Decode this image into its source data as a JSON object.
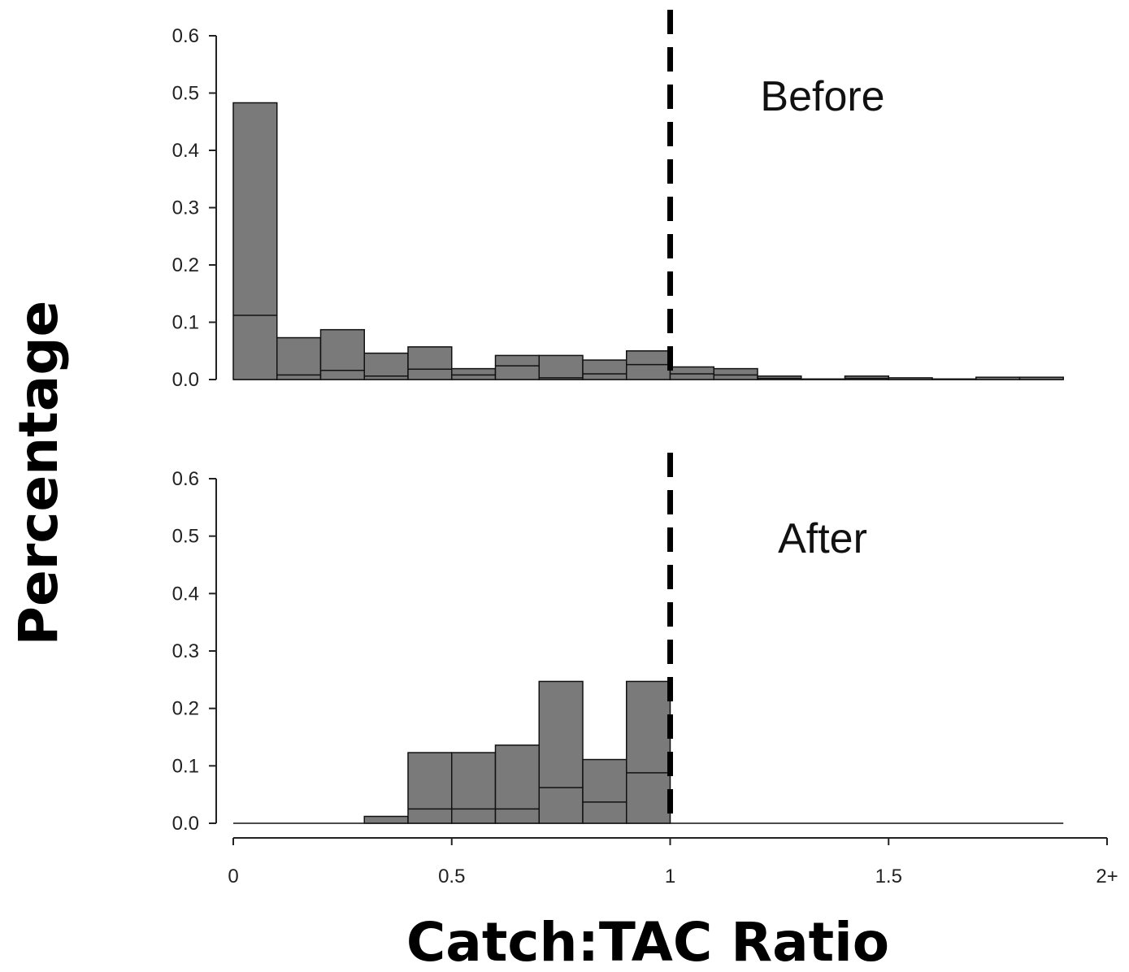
{
  "chart_data": [
    {
      "type": "bar",
      "panel_label": "Before",
      "ylim": [
        0,
        0.6
      ],
      "yticks": [
        "0.0",
        "0.1",
        "0.2",
        "0.3",
        "0.4",
        "0.5",
        "0.6"
      ],
      "xlim": [
        0,
        2
      ],
      "bin_width": 0.1,
      "bins": [
        {
          "x0": 0.0,
          "x1": 0.1,
          "value": 0.483,
          "inner": 0.112
        },
        {
          "x0": 0.1,
          "x1": 0.2,
          "value": 0.073,
          "inner": 0.008
        },
        {
          "x0": 0.2,
          "x1": 0.3,
          "value": 0.087,
          "inner": 0.016
        },
        {
          "x0": 0.3,
          "x1": 0.4,
          "value": 0.046,
          "inner": 0.006
        },
        {
          "x0": 0.4,
          "x1": 0.5,
          "value": 0.057,
          "inner": 0.018
        },
        {
          "x0": 0.5,
          "x1": 0.6,
          "value": 0.019,
          "inner": 0.008
        },
        {
          "x0": 0.6,
          "x1": 0.7,
          "value": 0.042,
          "inner": 0.024
        },
        {
          "x0": 0.7,
          "x1": 0.8,
          "value": 0.042,
          "inner": 0.003
        },
        {
          "x0": 0.8,
          "x1": 0.9,
          "value": 0.034,
          "inner": 0.01
        },
        {
          "x0": 0.9,
          "x1": 1.0,
          "value": 0.05,
          "inner": 0.026
        },
        {
          "x0": 1.0,
          "x1": 1.1,
          "value": 0.022,
          "inner": 0.01
        },
        {
          "x0": 1.1,
          "x1": 1.2,
          "value": 0.019,
          "inner": 0.008
        },
        {
          "x0": 1.2,
          "x1": 1.3,
          "value": 0.006,
          "inner": 0.002
        },
        {
          "x0": 1.3,
          "x1": 1.4,
          "value": 0.001,
          "inner": 0
        },
        {
          "x0": 1.4,
          "x1": 1.5,
          "value": 0.006,
          "inner": 0.002
        },
        {
          "x0": 1.5,
          "x1": 1.6,
          "value": 0.003,
          "inner": 0
        },
        {
          "x0": 1.6,
          "x1": 1.7,
          "value": 0.001,
          "inner": 0
        },
        {
          "x0": 1.7,
          "x1": 1.8,
          "value": 0.004,
          "inner": 0
        },
        {
          "x0": 1.8,
          "x1": 1.9,
          "value": 0.004,
          "inner": 0
        }
      ],
      "reference_line_x": 1.0
    },
    {
      "type": "bar",
      "panel_label": "After",
      "ylim": [
        0,
        0.6
      ],
      "yticks": [
        "0.0",
        "0.1",
        "0.2",
        "0.3",
        "0.4",
        "0.5",
        "0.6"
      ],
      "xlim": [
        0,
        2
      ],
      "bin_width": 0.1,
      "bins": [
        {
          "x0": 0.3,
          "x1": 0.4,
          "value": 0.012,
          "inner": 0
        },
        {
          "x0": 0.4,
          "x1": 0.5,
          "value": 0.123,
          "inner": 0.025
        },
        {
          "x0": 0.5,
          "x1": 0.6,
          "value": 0.123,
          "inner": 0.025
        },
        {
          "x0": 0.6,
          "x1": 0.7,
          "value": 0.136,
          "inner": 0.025
        },
        {
          "x0": 0.7,
          "x1": 0.8,
          "value": 0.247,
          "inner": 0.062
        },
        {
          "x0": 0.8,
          "x1": 0.9,
          "value": 0.111,
          "inner": 0.037
        },
        {
          "x0": 0.9,
          "x1": 1.0,
          "value": 0.247,
          "inner": 0.088
        }
      ],
      "reference_line_x": 1.0
    }
  ],
  "x_axis": {
    "title": "Catch:TAC Ratio",
    "ticks": [
      {
        "value": 0,
        "label": "0"
      },
      {
        "value": 0.5,
        "label": "0.5"
      },
      {
        "value": 1,
        "label": "1"
      },
      {
        "value": 1.5,
        "label": "1.5"
      },
      {
        "value": 2,
        "label": "2+"
      }
    ]
  },
  "y_axis": {
    "title": "Percentage"
  },
  "colors": {
    "bar_fill": "#7a7a7a",
    "bar_stroke": "#111111",
    "reference_line": "#000000"
  }
}
